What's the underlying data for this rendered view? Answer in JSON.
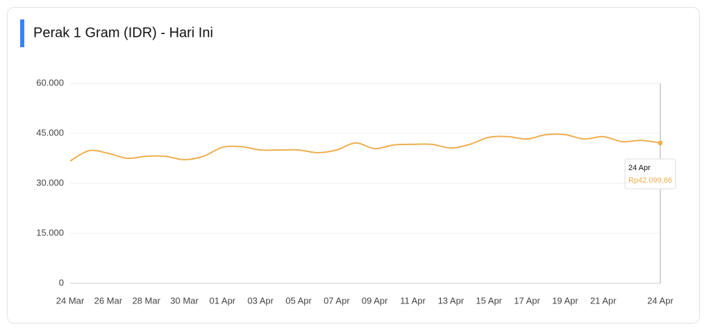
{
  "chart_data": {
    "type": "line",
    "title": "Perak 1 Gram (IDR) - Hari Ini",
    "categories": [
      "24 Mar",
      null,
      "26 Mar",
      null,
      "28 Mar",
      null,
      "30 Mar",
      null,
      "01 Apr",
      null,
      "03 Apr",
      null,
      "05 Apr",
      null,
      "07 Apr",
      null,
      "09 Apr",
      null,
      "11 Apr",
      null,
      "13 Apr",
      null,
      "15 Apr",
      null,
      "17 Apr",
      null,
      "19 Apr",
      null,
      "21 Apr",
      null,
      null,
      "24 Apr"
    ],
    "series": [
      {
        "name": "Perak 1 Gram (IDR)",
        "color": "#eeae4e",
        "values": [
          36700,
          39800,
          39000,
          37500,
          38100,
          38100,
          37100,
          38100,
          40800,
          41000,
          40000,
          40000,
          40000,
          39200,
          40000,
          42100,
          40400,
          41500,
          41700,
          41700,
          40600,
          41700,
          43800,
          44000,
          43300,
          44600,
          44600,
          43300,
          44000,
          42500,
          42900,
          42099.66
        ]
      }
    ],
    "ylim": [
      0,
      60000
    ],
    "yticks": [
      0,
      {
        "value": 15000,
        "label": "15.000"
      },
      {
        "value": 30000,
        "label": "30.000"
      },
      {
        "value": 45000,
        "label": "45.000"
      },
      {
        "value": 60000,
        "label": "60.000"
      }
    ],
    "grid": true,
    "tooltip_text": "Rp42.099,66"
  }
}
